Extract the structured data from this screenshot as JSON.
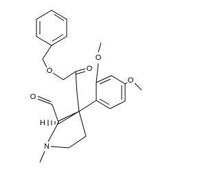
{
  "atoms": [
    {
      "label": "O"
    },
    {
      "label": "O"
    },
    {
      "label": "O"
    },
    {
      "label": "O"
    },
    {
      "label": "O"
    },
    {
      "label": "H"
    },
    {
      "label": "N"
    }
  ]
}
